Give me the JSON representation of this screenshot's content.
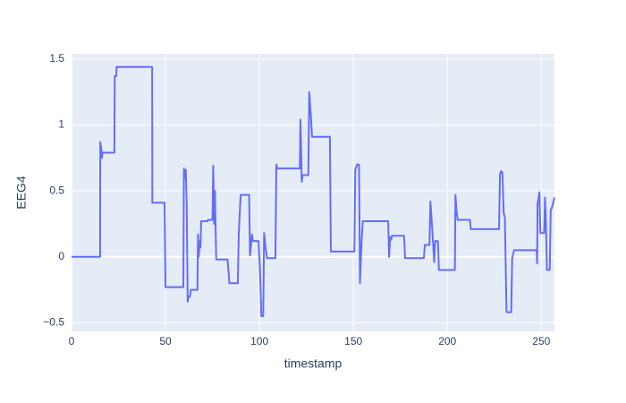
{
  "chart_data": {
    "type": "line",
    "x_label": "timestamp",
    "y_label": "EEG4",
    "color": "#636efa",
    "grid": true,
    "xlim": [
      0,
      257
    ],
    "ylim": [
      -0.565,
      1.54
    ],
    "xticks": [
      0,
      50,
      100,
      150,
      200,
      250
    ],
    "yticks": [
      {
        "value": -0.5,
        "label": "−0.5"
      },
      0,
      0.5,
      1,
      1.5
    ],
    "x": [
      0,
      15.2,
      15.3,
      15.8,
      16.2,
      16.5,
      22.8,
      23,
      23.8,
      24,
      42.9,
      43,
      49.5,
      50,
      59.5,
      59.8,
      60.3,
      60.8,
      61.3,
      61.8,
      62.3,
      63,
      63.5,
      67,
      67.3,
      67.7,
      68.2,
      68.6,
      69,
      72.4,
      72.6,
      75,
      75.4,
      75.9,
      76.3,
      77,
      83,
      83.5,
      84,
      88.5,
      89,
      90,
      94.5,
      95,
      96,
      96.5,
      99.5,
      100.3,
      101,
      102,
      102.5,
      103.2,
      104,
      108.5,
      109,
      109.5,
      121.5,
      121.8,
      122.2,
      122.5,
      123,
      126,
      126.5,
      127.2,
      128,
      137.5,
      138,
      150.5,
      151,
      152,
      153,
      153.5,
      154.3,
      155,
      168.5,
      169,
      169.6,
      170.1,
      170.5,
      177,
      177.5,
      187.5,
      188,
      190.5,
      191,
      192,
      193,
      193.5,
      195,
      195.5,
      204,
      204.3,
      204.9,
      205.5,
      212,
      212.5,
      227.5,
      228,
      228.5,
      229.3,
      230,
      230.6,
      231.5,
      234,
      234.5,
      235.5,
      247.5,
      247.8,
      248,
      249,
      249.5,
      251.5,
      252,
      252.5,
      253,
      254.5,
      255,
      255.8,
      257
    ],
    "values": [
      0,
      0,
      0.87,
      0.82,
      0.75,
      0.79,
      0.79,
      1.37,
      1.37,
      1.44,
      1.44,
      0.41,
      0.41,
      -0.23,
      -0.23,
      0.67,
      0.6,
      0.66,
      0.38,
      -0.34,
      -0.3,
      -0.3,
      -0.25,
      -0.25,
      0.17,
      0.0,
      0.12,
      0.07,
      0.27,
      0.27,
      0.28,
      0.28,
      0.69,
      0.25,
      0.5,
      -0.02,
      -0.02,
      -0.1,
      -0.2,
      -0.2,
      0.18,
      0.47,
      0.47,
      0.01,
      0.17,
      0.12,
      0.12,
      -0.1,
      -0.45,
      -0.45,
      0.18,
      0.08,
      -0.01,
      -0.01,
      0.7,
      0.67,
      0.67,
      1.04,
      0.8,
      0.57,
      0.62,
      0.62,
      1.25,
      1.11,
      0.91,
      0.91,
      0.04,
      0.04,
      0.66,
      0.7,
      0.7,
      -0.2,
      0.1,
      0.27,
      0.27,
      0.0,
      0.15,
      0.13,
      0.16,
      0.16,
      -0.01,
      -0.01,
      0.09,
      0.09,
      0.42,
      0.2,
      -0.04,
      0.12,
      0.12,
      -0.1,
      -0.1,
      0.47,
      0.35,
      0.28,
      0.28,
      0.21,
      0.21,
      0.62,
      0.65,
      0.64,
      0.33,
      0.3,
      -0.42,
      -0.42,
      -0.01,
      0.05,
      0.05,
      -0.05,
      0.4,
      0.49,
      0.18,
      0.18,
      0.45,
      0.25,
      -0.1,
      -0.1,
      0.35,
      0.38,
      0.45
    ]
  }
}
